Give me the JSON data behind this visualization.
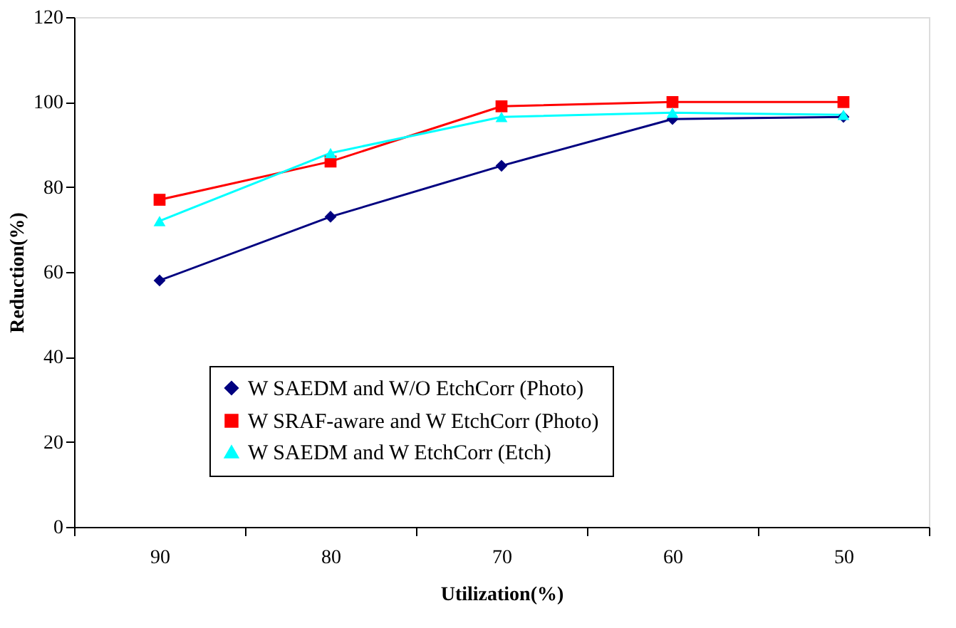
{
  "chart_data": {
    "type": "line",
    "xlabel": "Utilization(%)",
    "ylabel": "Reduction(%)",
    "categories": [
      "90",
      "80",
      "70",
      "60",
      "50"
    ],
    "series": [
      {
        "name": "W SAEDM and W/O EtchCorr (Photo)",
        "color": "#000080",
        "marker": "diamond",
        "values": [
          58,
          73,
          85,
          96,
          96.5
        ]
      },
      {
        "name": "W SRAF-aware and W EtchCorr (Photo)",
        "color": "#ff0000",
        "marker": "square",
        "values": [
          77,
          86,
          99,
          100,
          100
        ]
      },
      {
        "name": "W SAEDM and W EtchCorr (Etch)",
        "color": "#00ffff",
        "marker": "triangle",
        "values": [
          72,
          88,
          96.5,
          97.5,
          97
        ]
      }
    ],
    "ylim": [
      0,
      120
    ],
    "yticks": [
      0,
      20,
      40,
      60,
      80,
      100,
      120
    ],
    "grid": false,
    "legend": "bottom",
    "line_style": "solid"
  }
}
